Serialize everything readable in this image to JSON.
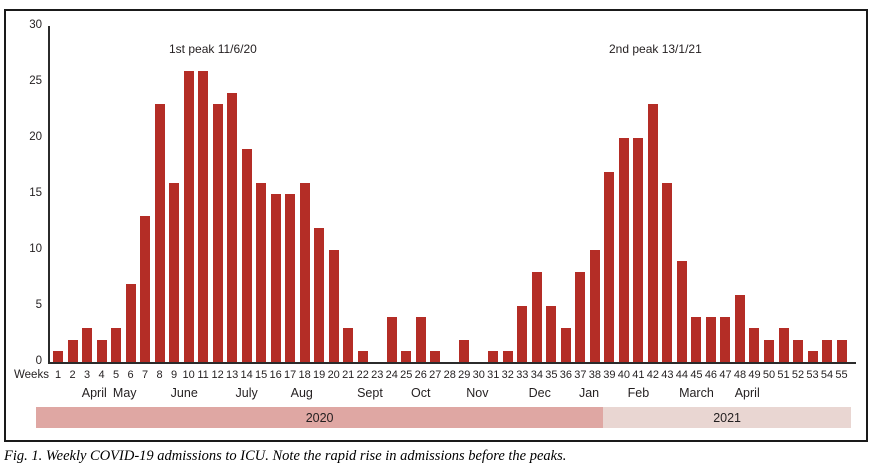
{
  "caption": "Fig. 1. Weekly COVID-19 admissions to ICU. Note the rapid rise in admissions before the peaks.",
  "chart_data": {
    "type": "bar",
    "title": "",
    "xlabel": "Weeks",
    "ylabel": "",
    "ylim": [
      0,
      30
    ],
    "yticks": [
      0,
      5,
      10,
      15,
      20,
      25,
      30
    ],
    "grid": false,
    "bar_color": "#b42d26",
    "axis_color": "#2b2b2b",
    "annotations": [
      {
        "text": "1st peak 11/6/20",
        "near_week": 10
      },
      {
        "text": "2nd peak 13/1/21",
        "near_week": 40
      }
    ],
    "categories": [
      1,
      2,
      3,
      4,
      5,
      6,
      7,
      8,
      9,
      10,
      11,
      12,
      13,
      14,
      15,
      16,
      17,
      18,
      19,
      20,
      21,
      22,
      23,
      24,
      25,
      26,
      27,
      28,
      29,
      30,
      31,
      32,
      33,
      34,
      35,
      36,
      37,
      38,
      39,
      40,
      41,
      42,
      43,
      44,
      45,
      46,
      47,
      48,
      49,
      50,
      51,
      52,
      53,
      54,
      55
    ],
    "values": [
      1,
      2,
      3,
      2,
      3,
      7,
      13,
      23,
      16,
      26,
      26,
      23,
      24,
      19,
      16,
      15,
      15,
      16,
      12,
      10,
      3,
      1,
      0,
      4,
      1,
      4,
      1,
      0,
      2,
      0,
      1,
      1,
      5,
      8,
      5,
      3,
      8,
      10,
      17,
      20,
      20,
      23,
      16,
      9,
      4,
      4,
      4,
      6,
      3,
      2,
      3,
      2,
      1,
      2,
      2
    ],
    "months": [
      {
        "label": "April",
        "week": 3.5
      },
      {
        "label": "May",
        "week": 5.6
      },
      {
        "label": "June",
        "week": 9.7
      },
      {
        "label": "July",
        "week": 14.0
      },
      {
        "label": "Aug",
        "week": 17.8
      },
      {
        "label": "Sept",
        "week": 22.5
      },
      {
        "label": "Oct",
        "week": 26.0
      },
      {
        "label": "Nov",
        "week": 29.9
      },
      {
        "label": "Dec",
        "week": 34.2
      },
      {
        "label": "Jan",
        "week": 37.6
      },
      {
        "label": "Feb",
        "week": 41.0
      },
      {
        "label": "March",
        "week": 45.0
      },
      {
        "label": "April",
        "week": 48.5
      }
    ],
    "year_bands": [
      {
        "label": "2020",
        "color": "#dfa7a3"
      },
      {
        "label": "2021",
        "color": "#e9d6d2"
      }
    ]
  }
}
